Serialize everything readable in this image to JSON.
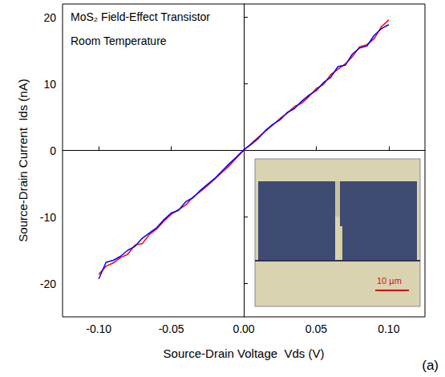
{
  "chart_data": {
    "type": "line",
    "x_label": "Source-Drain Voltage  Vds (V)",
    "y_label": "Source-Drain Current  Ids (nA)",
    "annotations": [
      "MoS₂ Field-Effect Transistor",
      "Room Temperature",
      "(a)",
      "10 µm"
    ],
    "x": [
      -0.1,
      -0.095,
      -0.09,
      -0.085,
      -0.08,
      -0.075,
      -0.07,
      -0.065,
      -0.06,
      -0.055,
      -0.05,
      -0.045,
      -0.04,
      -0.035,
      -0.03,
      -0.025,
      -0.02,
      -0.015,
      -0.01,
      -0.005,
      0,
      0.005,
      0.01,
      0.015,
      0.02,
      0.025,
      0.03,
      0.035,
      0.04,
      0.045,
      0.05,
      0.055,
      0.06,
      0.065,
      0.07,
      0.075,
      0.08,
      0.085,
      0.09,
      0.095,
      0.1
    ],
    "series": [
      {
        "color": "#ff0000",
        "values": [
          -18.6,
          -17.4,
          -16.9,
          -16.1,
          -15.6,
          -14.2,
          -14.0,
          -12.6,
          -11.8,
          -10.6,
          -9.6,
          -8.9,
          -8.2,
          -7.0,
          -6.2,
          -5.3,
          -4.3,
          -3.3,
          -2.3,
          -1.1,
          0.0,
          1.0,
          2.0,
          2.9,
          3.8,
          4.8,
          5.6,
          6.6,
          7.1,
          8.1,
          9.3,
          9.9,
          11.4,
          12.2,
          13.0,
          14.1,
          15.6,
          15.9,
          16.8,
          18.6,
          19.6
        ]
      },
      {
        "color": "#0000ff",
        "values": [
          -19.3,
          -16.8,
          -16.5,
          -15.9,
          -15.0,
          -14.4,
          -13.2,
          -12.4,
          -11.6,
          -10.4,
          -9.4,
          -9.0,
          -7.7,
          -7.1,
          -6.0,
          -5.1,
          -4.2,
          -3.1,
          -2.0,
          -1.0,
          0.1,
          0.9,
          1.8,
          3.0,
          3.9,
          4.6,
          5.7,
          6.3,
          7.4,
          8.3,
          9.0,
          10.2,
          11.0,
          12.6,
          12.8,
          14.5,
          15.4,
          15.7,
          17.3,
          18.3,
          18.9
        ]
      }
    ],
    "xlim": [
      -0.125,
      0.125
    ],
    "xticks": [
      {
        "value": -0.1,
        "label": "-0.10"
      },
      {
        "value": -0.05,
        "label": "-0.05"
      },
      {
        "value": 0,
        "label": "0.00"
      },
      {
        "value": 0.05,
        "label": "0.05"
      },
      {
        "value": 0.1,
        "label": "0.10"
      }
    ],
    "ylim": [
      -25,
      22
    ],
    "yticks": [
      -20,
      -10,
      0,
      10,
      20
    ],
    "grid": false
  }
}
